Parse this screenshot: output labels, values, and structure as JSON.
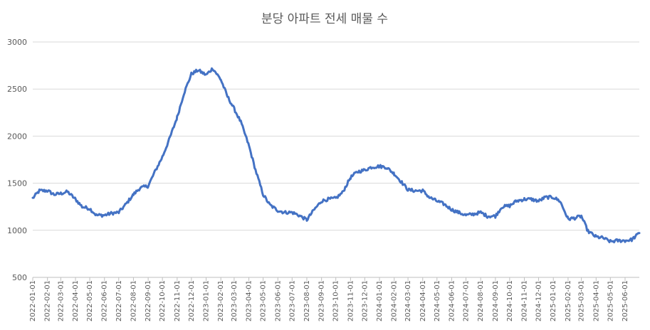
{
  "chart_data": {
    "type": "line",
    "title": "분당 아파트 전세 매물 수",
    "xlabel": "",
    "ylabel": "",
    "ylim": [
      500,
      3000
    ],
    "yticks": [
      500,
      1000,
      1500,
      2000,
      2500,
      3000
    ],
    "grid": true,
    "legend": "none",
    "line_color": "#4472c4",
    "x_tick_labels": [
      "2022-01-01",
      "2022-02-01",
      "2022-03-01",
      "2022-04-01",
      "2022-05-01",
      "2022-06-01",
      "2022-07-01",
      "2022-08-01",
      "2022-09-01",
      "2022-10-01",
      "2022-11-01",
      "2022-12-01",
      "2023-01-01",
      "2023-02-01",
      "2023-03-01",
      "2023-04-01",
      "2023-05-01",
      "2023-06-01",
      "2023-07-01",
      "2023-08-01",
      "2023-09-01",
      "2023-10-01",
      "2023-11-01",
      "2023-12-01",
      "2024-01-01",
      "2024-02-01",
      "2024-03-01",
      "2024-04-01",
      "2024-05-01",
      "2024-06-01",
      "2024-07-01",
      "2024-08-01",
      "2024-09-01",
      "2024-10-01",
      "2024-11-01",
      "2024-12-01",
      "2025-01-01",
      "2025-02-01",
      "2025-03-01",
      "2025-04-01",
      "2025-05-01",
      "2025-06-01"
    ],
    "series": [
      {
        "x": [
          "2022-01-01",
          "2022-01-15",
          "2022-02-01",
          "2022-02-15",
          "2022-03-01",
          "2022-03-15",
          "2022-04-01",
          "2022-04-15",
          "2022-05-01",
          "2022-05-15",
          "2022-06-01",
          "2022-06-15",
          "2022-07-01",
          "2022-07-15",
          "2022-08-01",
          "2022-08-15",
          "2022-09-01",
          "2022-09-15",
          "2022-10-01",
          "2022-10-15",
          "2022-11-01",
          "2022-11-15",
          "2022-12-01",
          "2022-12-15",
          "2023-01-01",
          "2023-01-15",
          "2023-02-01",
          "2023-02-15",
          "2023-03-01",
          "2023-03-15",
          "2023-04-01",
          "2023-04-15",
          "2023-05-01",
          "2023-05-15",
          "2023-06-01",
          "2023-06-15",
          "2023-07-01",
          "2023-07-15",
          "2023-08-01",
          "2023-08-15",
          "2023-09-01",
          "2023-09-15",
          "2023-10-01",
          "2023-10-15",
          "2023-11-01",
          "2023-11-15",
          "2023-12-01",
          "2023-12-15",
          "2024-01-01",
          "2024-01-15",
          "2024-02-01",
          "2024-02-15",
          "2024-03-01",
          "2024-03-15",
          "2024-04-01",
          "2024-04-15",
          "2024-05-01",
          "2024-05-15",
          "2024-06-01",
          "2024-06-15",
          "2024-07-01",
          "2024-07-15",
          "2024-08-01",
          "2024-08-15",
          "2024-09-01",
          "2024-09-15",
          "2024-10-01",
          "2024-10-15",
          "2024-11-01",
          "2024-11-15",
          "2024-12-01",
          "2024-12-15",
          "2025-01-01",
          "2025-01-15",
          "2025-02-01",
          "2025-02-15",
          "2025-03-01",
          "2025-03-15",
          "2025-04-01",
          "2025-04-15",
          "2025-05-01",
          "2025-05-15",
          "2025-06-01",
          "2025-06-15",
          "2025-07-01"
        ],
        "values": [
          1340,
          1420,
          1420,
          1380,
          1390,
          1410,
          1330,
          1250,
          1230,
          1160,
          1160,
          1180,
          1190,
          1270,
          1380,
          1450,
          1470,
          1620,
          1780,
          1960,
          2200,
          2450,
          2660,
          2700,
          2650,
          2720,
          2600,
          2420,
          2290,
          2150,
          1900,
          1640,
          1380,
          1270,
          1210,
          1190,
          1190,
          1160,
          1110,
          1210,
          1310,
          1330,
          1340,
          1400,
          1560,
          1620,
          1640,
          1670,
          1680,
          1670,
          1600,
          1520,
          1430,
          1420,
          1420,
          1350,
          1310,
          1280,
          1220,
          1190,
          1160,
          1170,
          1190,
          1150,
          1150,
          1250,
          1260,
          1310,
          1330,
          1330,
          1310,
          1350,
          1350,
          1310,
          1120,
          1130,
          1150,
          990,
          930,
          920,
          880,
          890,
          890,
          900,
          970
        ]
      }
    ]
  }
}
